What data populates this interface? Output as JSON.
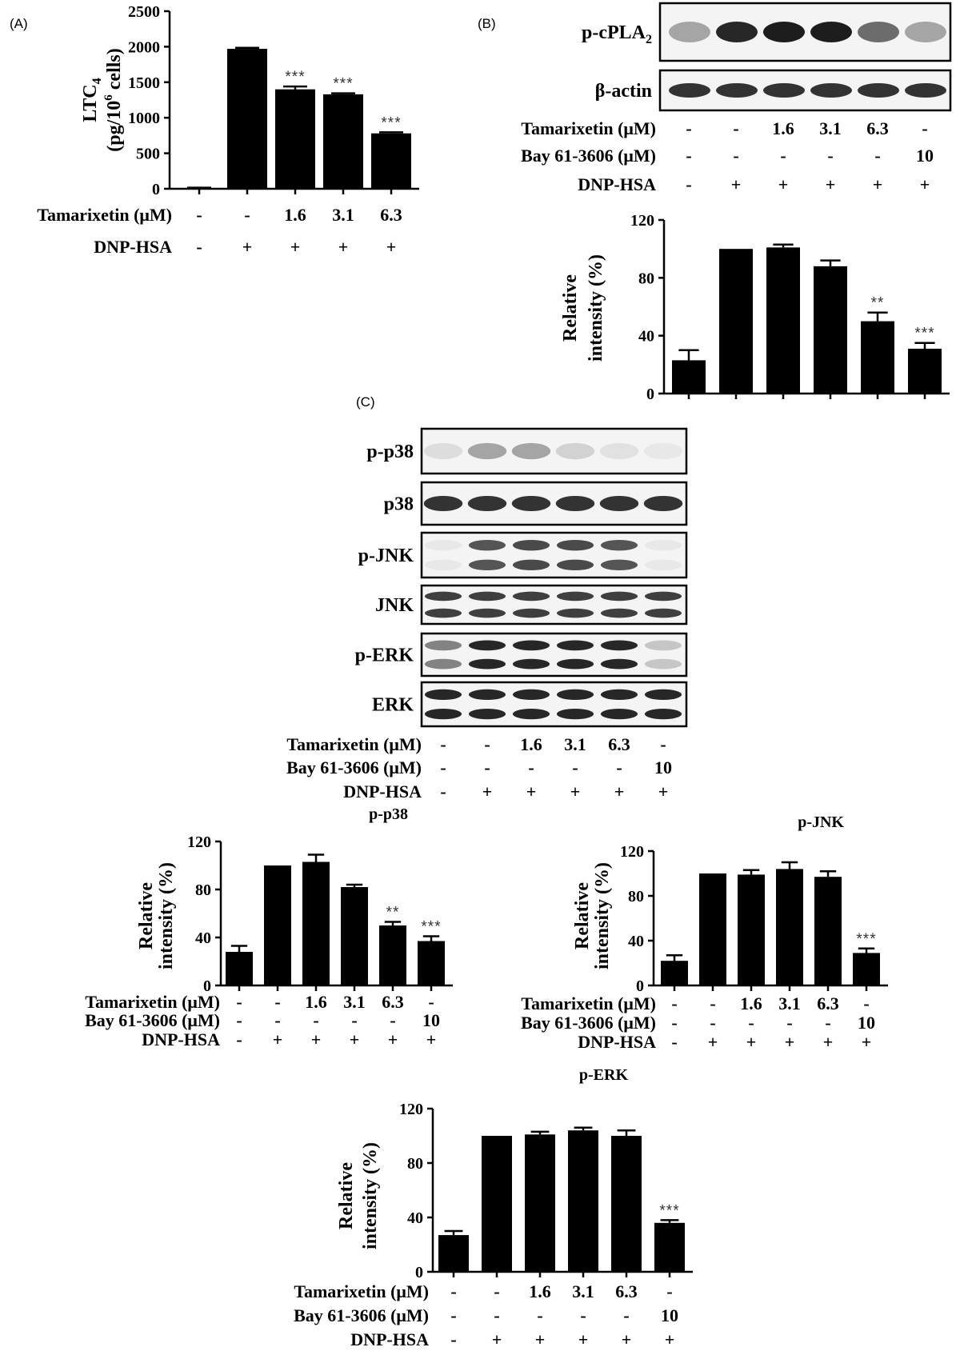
{
  "panel_labels": {
    "a": "(A)",
    "b": "(B)",
    "c": "(C)"
  },
  "chart_data": [
    {
      "id": "A",
      "type": "bar",
      "title": "",
      "ylabel_lines": [
        "LTC4",
        "(pg/10^6 cells)"
      ],
      "ylim": [
        0,
        2500
      ],
      "yticks": [
        0,
        500,
        1000,
        1500,
        2000,
        2500
      ],
      "values": [
        10,
        1970,
        1400,
        1330,
        780
      ],
      "errors": [
        5,
        15,
        40,
        15,
        15
      ],
      "significance": [
        "",
        "",
        "***",
        "***",
        "***"
      ],
      "conditions": [
        {
          "label": "Tamarixetin (μM)",
          "values": [
            "-",
            "-",
            "1.6",
            "3.1",
            "6.3"
          ]
        },
        {
          "label": "DNP-HSA",
          "values": [
            "-",
            "+",
            "+",
            "+",
            "+"
          ]
        }
      ]
    },
    {
      "id": "B",
      "type": "bar",
      "title": "",
      "ylabel_lines": [
        "Relative",
        "intensity (%)"
      ],
      "ylim": [
        0,
        120
      ],
      "yticks": [
        0,
        40,
        80,
        120
      ],
      "values": [
        23,
        100,
        101,
        88,
        50,
        31
      ],
      "errors": [
        7,
        0,
        2,
        4,
        6,
        4
      ],
      "significance": [
        "",
        "",
        "",
        "",
        "**",
        "***"
      ],
      "conditions": [
        {
          "label": "Tamarixetin (μM)",
          "values": [
            "-",
            "-",
            "1.6",
            "3.1",
            "6.3",
            "-"
          ]
        },
        {
          "label": "Bay 61-3606 (μM)",
          "values": [
            "-",
            "-",
            "-",
            "-",
            "-",
            "10"
          ]
        },
        {
          "label": "DNP-HSA",
          "values": [
            "-",
            "+",
            "+",
            "+",
            "+",
            "+"
          ]
        }
      ]
    },
    {
      "id": "C-p-p38",
      "type": "bar",
      "title": "p-p38",
      "ylabel_lines": [
        "Relative",
        "intensity (%)"
      ],
      "ylim": [
        0,
        120
      ],
      "yticks": [
        0,
        40,
        80,
        120
      ],
      "values": [
        28,
        100,
        103,
        82,
        50,
        37
      ],
      "errors": [
        5,
        0,
        6,
        2,
        3,
        4
      ],
      "significance": [
        "",
        "",
        "",
        "",
        "**",
        "***"
      ],
      "conditions": [
        {
          "label": "Tamarixetin (μM)",
          "values": [
            "-",
            "-",
            "1.6",
            "3.1",
            "6.3",
            "-"
          ]
        },
        {
          "label": "Bay 61-3606 (μM)",
          "values": [
            "-",
            "-",
            "-",
            "-",
            "-",
            "10"
          ]
        },
        {
          "label": "DNP-HSA",
          "values": [
            "-",
            "+",
            "+",
            "+",
            "+",
            "+"
          ]
        }
      ]
    },
    {
      "id": "C-p-JNK",
      "type": "bar",
      "title": "p-JNK",
      "ylabel_lines": [
        "Relative",
        "intensity (%)"
      ],
      "ylim": [
        0,
        120
      ],
      "yticks": [
        0,
        40,
        80,
        120
      ],
      "values": [
        22,
        100,
        99,
        104,
        97,
        29
      ],
      "errors": [
        5,
        0,
        4,
        6,
        5,
        4
      ],
      "significance": [
        "",
        "",
        "",
        "",
        "",
        "***"
      ],
      "conditions": [
        {
          "label": "Tamarixetin (μM)",
          "values": [
            "-",
            "-",
            "1.6",
            "3.1",
            "6.3",
            "-"
          ]
        },
        {
          "label": "Bay 61-3606 (μM)",
          "values": [
            "-",
            "-",
            "-",
            "-",
            "-",
            "10"
          ]
        },
        {
          "label": "DNP-HSA",
          "values": [
            "-",
            "+",
            "+",
            "+",
            "+",
            "+"
          ]
        }
      ]
    },
    {
      "id": "C-p-ERK",
      "type": "bar",
      "title": "p-ERK",
      "ylabel_lines": [
        "Relative",
        "intensity (%)"
      ],
      "ylim": [
        0,
        120
      ],
      "yticks": [
        0,
        40,
        80,
        120
      ],
      "values": [
        27,
        100,
        101,
        104,
        100,
        36
      ],
      "errors": [
        3,
        0,
        2,
        2,
        4,
        2
      ],
      "significance": [
        "",
        "",
        "",
        "",
        "",
        "***"
      ],
      "conditions": [
        {
          "label": "Tamarixetin (μM)",
          "values": [
            "-",
            "-",
            "1.6",
            "3.1",
            "6.3",
            "-"
          ]
        },
        {
          "label": "Bay 61-3606 (μM)",
          "values": [
            "-",
            "-",
            "-",
            "-",
            "-",
            "10"
          ]
        },
        {
          "label": "DNP-HSA",
          "values": [
            "-",
            "+",
            "+",
            "+",
            "+",
            "+"
          ]
        }
      ]
    }
  ],
  "blots": {
    "B": {
      "rows": [
        {
          "label": "p-cPLA2",
          "intensity": [
            0.35,
            0.9,
            0.95,
            0.95,
            0.6,
            0.35
          ]
        },
        {
          "label": "β-actin",
          "intensity": [
            0.85,
            0.85,
            0.85,
            0.85,
            0.85,
            0.85
          ]
        }
      ]
    },
    "C": {
      "rows": [
        {
          "label": "p-p38",
          "intensity": [
            0.1,
            0.35,
            0.35,
            0.15,
            0.08,
            0.05
          ]
        },
        {
          "label": "p38",
          "intensity": [
            0.85,
            0.85,
            0.85,
            0.85,
            0.85,
            0.85
          ]
        },
        {
          "label": "p-JNK",
          "intensity": [
            0.05,
            0.7,
            0.75,
            0.75,
            0.7,
            0.05
          ]
        },
        {
          "label": "JNK",
          "intensity": [
            0.8,
            0.8,
            0.8,
            0.8,
            0.8,
            0.8
          ]
        },
        {
          "label": "p-ERK",
          "intensity": [
            0.5,
            0.9,
            0.9,
            0.9,
            0.9,
            0.2
          ]
        },
        {
          "label": "ERK",
          "intensity": [
            0.9,
            0.9,
            0.9,
            0.9,
            0.9,
            0.9
          ]
        }
      ],
      "conditions": [
        {
          "label": "Tamarixetin (μM)",
          "values": [
            "-",
            "-",
            "1.6",
            "3.1",
            "6.3",
            "-"
          ]
        },
        {
          "label": "Bay 61-3606 (μM)",
          "values": [
            "-",
            "-",
            "-",
            "-",
            "-",
            "10"
          ]
        },
        {
          "label": "DNP-HSA",
          "values": [
            "-",
            "+",
            "+",
            "+",
            "+",
            "+"
          ]
        }
      ]
    }
  }
}
